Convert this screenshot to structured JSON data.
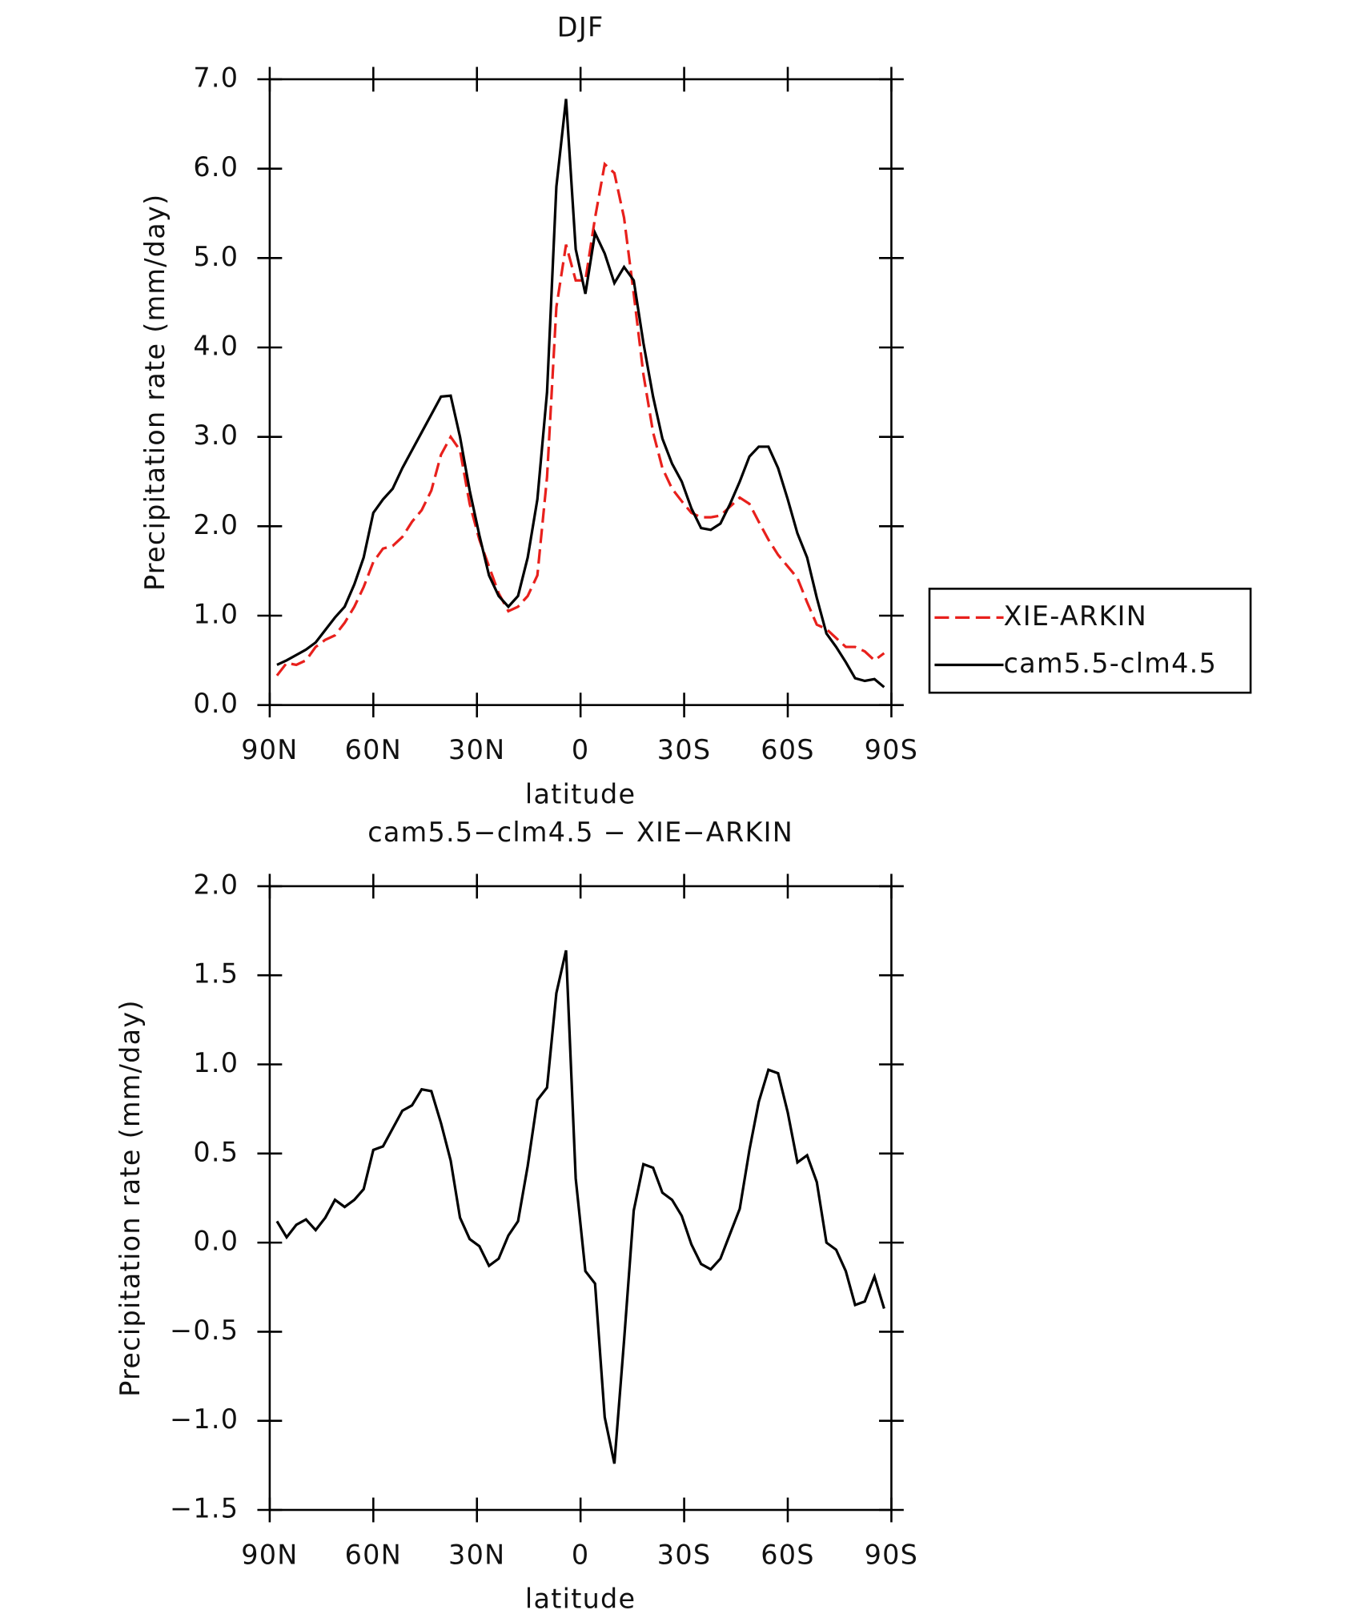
{
  "chart_data": [
    {
      "type": "line",
      "title": "DJF",
      "xlabel": "latitude",
      "ylabel": "Precipitation rate (mm/day)",
      "x": [
        87.9,
        85.1,
        82.3,
        79.5,
        76.7,
        73.9,
        71.1,
        68.3,
        65.5,
        62.8,
        60.0,
        57.2,
        54.4,
        51.6,
        48.8,
        46.0,
        43.2,
        40.4,
        37.6,
        34.9,
        32.1,
        29.3,
        26.5,
        23.7,
        20.9,
        18.1,
        15.3,
        12.5,
        9.7,
        7.0,
        4.2,
        1.4,
        -1.4,
        -4.2,
        -7.0,
        -9.8,
        -12.6,
        -15.4,
        -18.2,
        -21.0,
        -23.7,
        -26.5,
        -29.3,
        -32.1,
        -34.9,
        -37.7,
        -40.5,
        -43.3,
        -46.1,
        -48.9,
        -51.6,
        -54.4,
        -57.2,
        -60.0,
        -62.8,
        -65.6,
        -68.4,
        -71.2,
        -74.0,
        -76.8,
        -79.5,
        -82.3,
        -85.1,
        -87.9
      ],
      "xlim": [
        90,
        -90
      ],
      "xticks": [
        {
          "value": 90,
          "label": "90N"
        },
        {
          "value": 60,
          "label": "60N"
        },
        {
          "value": 30,
          "label": "30N"
        },
        0,
        {
          "value": -30,
          "label": "30S"
        },
        {
          "value": -60,
          "label": "60S"
        },
        {
          "value": -90,
          "label": "90S"
        }
      ],
      "ylim": [
        0,
        7
      ],
      "yticks": [
        {
          "value": 0,
          "label": "0.0"
        },
        {
          "value": 1,
          "label": "1.0"
        },
        {
          "value": 2,
          "label": "2.0"
        },
        {
          "value": 3,
          "label": "3.0"
        },
        {
          "value": 4,
          "label": "4.0"
        },
        {
          "value": 5,
          "label": "5.0"
        },
        {
          "value": 6,
          "label": "6.0"
        },
        {
          "value": 7,
          "label": "7.0"
        }
      ],
      "legend": "right",
      "series": [
        {
          "name": "XIE-ARKIN",
          "color": "#e8201c",
          "linestyle": "dashed",
          "values": [
            0.33,
            0.47,
            0.45,
            0.5,
            0.65,
            0.73,
            0.78,
            0.92,
            1.1,
            1.32,
            1.6,
            1.75,
            1.78,
            1.88,
            2.05,
            2.18,
            2.4,
            2.8,
            3.0,
            2.85,
            2.25,
            1.85,
            1.55,
            1.25,
            1.05,
            1.1,
            1.22,
            1.45,
            2.55,
            4.45,
            5.15,
            4.75,
            4.75,
            5.45,
            6.05,
            5.95,
            5.45,
            4.6,
            3.7,
            3.05,
            2.65,
            2.42,
            2.28,
            2.15,
            2.1,
            2.1,
            2.12,
            2.22,
            2.32,
            2.25,
            2.05,
            1.85,
            1.68,
            1.55,
            1.42,
            1.15,
            0.9,
            0.85,
            0.75,
            0.65,
            0.65,
            0.6,
            0.5,
            0.58
          ]
        },
        {
          "name": "cam5.5-clm4.5",
          "color": "#000000",
          "linestyle": "solid",
          "values": [
            0.45,
            0.5,
            0.56,
            0.62,
            0.7,
            0.84,
            0.98,
            1.1,
            1.35,
            1.65,
            2.15,
            2.3,
            2.42,
            2.65,
            2.85,
            3.05,
            3.25,
            3.45,
            3.46,
            3.0,
            2.4,
            1.9,
            1.45,
            1.22,
            1.1,
            1.22,
            1.65,
            2.3,
            3.5,
            5.8,
            6.78,
            5.1,
            4.6,
            5.28,
            5.05,
            4.72,
            4.9,
            4.75,
            4.05,
            3.45,
            2.98,
            2.7,
            2.5,
            2.2,
            1.98,
            1.96,
            2.03,
            2.25,
            2.5,
            2.78,
            2.89,
            2.89,
            2.65,
            2.3,
            1.92,
            1.65,
            1.2,
            0.8,
            0.65,
            0.48,
            0.3,
            0.27,
            0.29,
            0.2
          ]
        }
      ]
    },
    {
      "type": "line",
      "title": "cam5.5−clm4.5 − XIE−ARKIN",
      "xlabel": "latitude",
      "ylabel": "Precipitation rate (mm/day)",
      "x": [
        87.9,
        85.1,
        82.3,
        79.5,
        76.7,
        73.9,
        71.1,
        68.3,
        65.5,
        62.8,
        60.0,
        57.2,
        54.4,
        51.6,
        48.8,
        46.0,
        43.2,
        40.4,
        37.6,
        34.9,
        32.1,
        29.3,
        26.5,
        23.7,
        20.9,
        18.1,
        15.3,
        12.5,
        9.7,
        7.0,
        4.2,
        1.4,
        -1.4,
        -4.2,
        -7.0,
        -9.8,
        -12.6,
        -15.4,
        -18.2,
        -21.0,
        -23.7,
        -26.5,
        -29.3,
        -32.1,
        -34.9,
        -37.7,
        -40.5,
        -43.3,
        -46.1,
        -48.9,
        -51.6,
        -54.4,
        -57.2,
        -60.0,
        -62.8,
        -65.6,
        -68.4,
        -71.2,
        -74.0,
        -76.8,
        -79.5,
        -82.3,
        -85.1,
        -87.9
      ],
      "xlim": [
        90,
        -90
      ],
      "xticks": [
        {
          "value": 90,
          "label": "90N"
        },
        {
          "value": 60,
          "label": "60N"
        },
        {
          "value": 30,
          "label": "30N"
        },
        0,
        {
          "value": -30,
          "label": "30S"
        },
        {
          "value": -60,
          "label": "60S"
        },
        {
          "value": -90,
          "label": "90S"
        }
      ],
      "ylim": [
        -1.5,
        2
      ],
      "yticks": [
        {
          "value": -1.5,
          "label": "−1.5"
        },
        {
          "value": -1,
          "label": "−1.0"
        },
        {
          "value": -0.5,
          "label": "−0.5"
        },
        {
          "value": 0,
          "label": "0.0"
        },
        {
          "value": 0.5,
          "label": "0.5"
        },
        {
          "value": 1,
          "label": "1.0"
        },
        {
          "value": 1.5,
          "label": "1.5"
        },
        {
          "value": 2,
          "label": "2.0"
        }
      ],
      "color": "#000000",
      "values": [
        0.12,
        0.03,
        0.1,
        0.13,
        0.07,
        0.14,
        0.24,
        0.2,
        0.24,
        0.3,
        0.52,
        0.54,
        0.64,
        0.74,
        0.77,
        0.86,
        0.85,
        0.67,
        0.46,
        0.14,
        0.02,
        -0.02,
        -0.13,
        -0.09,
        0.04,
        0.12,
        0.43,
        0.8,
        0.87,
        1.4,
        1.64,
        0.36,
        -0.16,
        -0.23,
        -0.98,
        -1.24,
        -0.55,
        0.18,
        0.44,
        0.42,
        0.28,
        0.24,
        0.15,
        -0.01,
        -0.12,
        -0.15,
        -0.09,
        0.05,
        0.19,
        0.52,
        0.79,
        0.97,
        0.95,
        0.73,
        0.45,
        0.49,
        0.34,
        0.0,
        -0.04,
        -0.16,
        -0.35,
        -0.33,
        -0.19,
        -0.37
      ]
    }
  ]
}
